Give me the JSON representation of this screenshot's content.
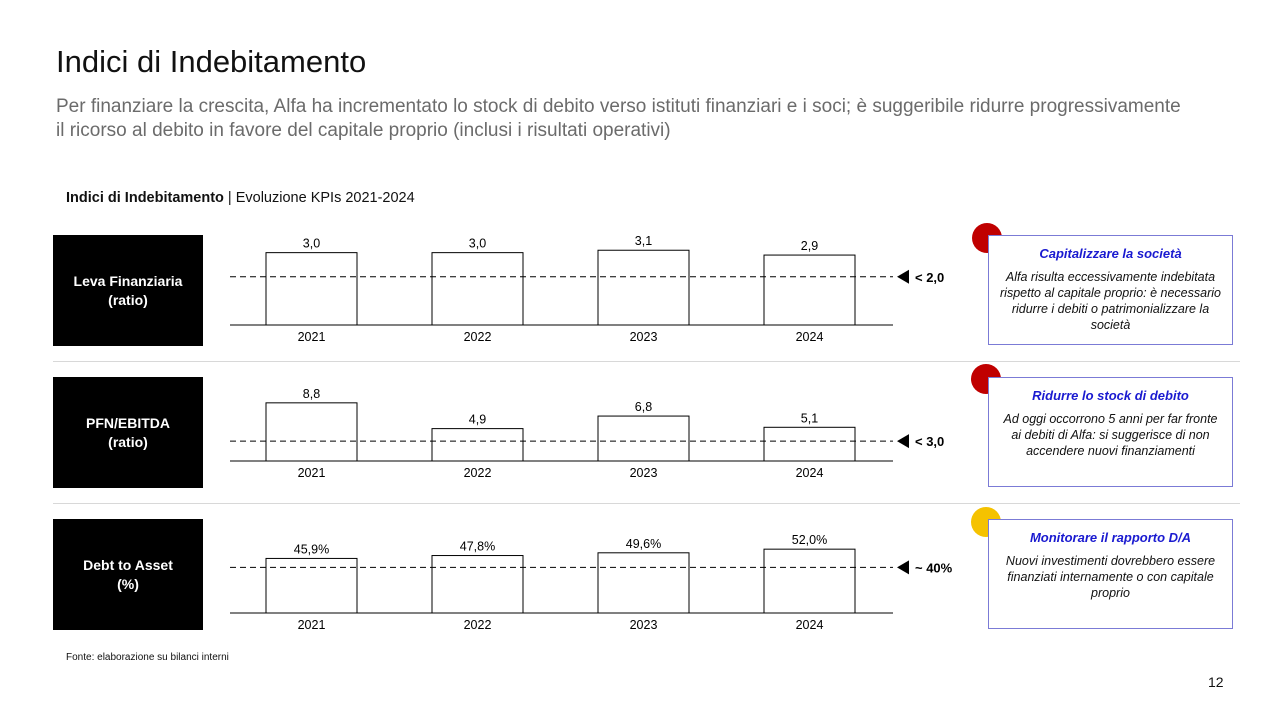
{
  "title": "Indici di Indebitamento",
  "subtitle": "Per finanziare la crescita, Alfa ha incrementato lo stock di debito verso istituti finanziari e i soci; è suggeribile ridurre progressivamente il ricorso al debito in favore del capitale proprio (inclusi i risultati operativi)",
  "section": {
    "bold": "Indici di Indebitamento",
    "rest": " | Evoluzione KPIs 2021-2024"
  },
  "rows": [
    {
      "label_line1": "Leva Finanziaria",
      "label_line2": "(ratio)",
      "status_color": "#c00000",
      "card_title": "Capitalizzare la società",
      "card_body": "Alfa risulta eccessivamente indebitata rispetto al capitale proprio: è necessario ridurre i debiti o patrimonializzare la società"
    },
    {
      "label_line1": "PFN/EBITDA",
      "label_line2": "(ratio)",
      "status_color": "#c00000",
      "card_title": "Ridurre lo stock di debito",
      "card_body": "Ad oggi occorrono 5 anni per far fronte ai debiti di Alfa: si suggerisce di non accendere nuovi finanziamenti"
    },
    {
      "label_line1": "Debt to Asset",
      "label_line2": "(%)",
      "status_color": "#f5c200",
      "card_title": "Monitorare il rapporto D/A",
      "card_body": "Nuovi investimenti dovrebbero essere finanziati internamente o con capitale proprio"
    }
  ],
  "chart_data": [
    {
      "type": "bar",
      "categories": [
        "2021",
        "2022",
        "2023",
        "2024"
      ],
      "values": [
        3.0,
        3.0,
        3.1,
        2.9
      ],
      "labels": [
        "3,0",
        "3,0",
        "3,1",
        "2,9"
      ],
      "ylim": [
        0,
        3.4
      ],
      "threshold": 2.0,
      "threshold_label": "< 2,0"
    },
    {
      "type": "bar",
      "categories": [
        "2021",
        "2022",
        "2023",
        "2024"
      ],
      "values": [
        8.8,
        4.9,
        6.8,
        5.1
      ],
      "labels": [
        "8,8",
        "4,9",
        "6,8",
        "5,1"
      ],
      "ylim": [
        0,
        11.5
      ],
      "threshold": 3.0,
      "threshold_label": "< 3,0"
    },
    {
      "type": "bar",
      "categories": [
        "2021",
        "2022",
        "2023",
        "2024"
      ],
      "values": [
        45.9,
        47.8,
        49.6,
        52.0
      ],
      "labels": [
        "45,9%",
        "47,8%",
        "49,6%",
        "52,0%"
      ],
      "ylim": [
        10,
        60
      ],
      "threshold": 40,
      "threshold_label": "~ 40%"
    }
  ],
  "source": "Fonte: elaborazione su bilanci interni",
  "page_number": "12"
}
